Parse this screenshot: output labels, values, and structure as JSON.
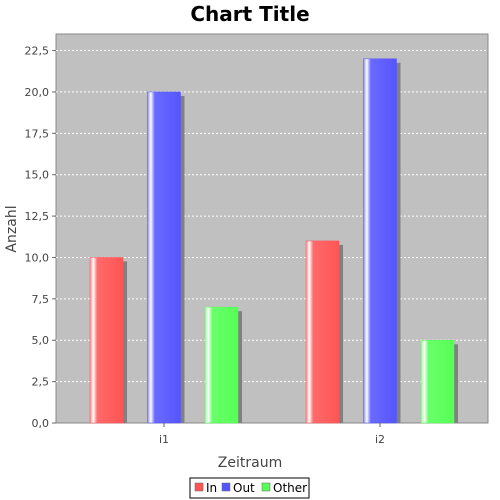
{
  "chart_data": {
    "type": "bar",
    "title": "Chart Title",
    "xlabel": "Zeitraum",
    "ylabel": "Anzahl",
    "categories": [
      "i1",
      "i2"
    ],
    "series": [
      {
        "name": "In",
        "values": [
          10,
          11
        ],
        "color": "#ff5555"
      },
      {
        "name": "Out",
        "values": [
          20,
          22
        ],
        "color": "#5555ff"
      },
      {
        "name": "Other",
        "values": [
          7,
          5
        ],
        "color": "#55ff55"
      }
    ],
    "ylim": [
      0,
      23.5
    ],
    "yticks": [
      0,
      2.5,
      5,
      7.5,
      10,
      12.5,
      15,
      17.5,
      20,
      22.5
    ],
    "ytick_labels": [
      "0,0",
      "2,5",
      "5,0",
      "7,5",
      "10,0",
      "12,5",
      "15,0",
      "17,5",
      "20,0",
      "22,5"
    ],
    "grid": true,
    "legend": "bottom",
    "plot_background": "#c0c0c0"
  }
}
